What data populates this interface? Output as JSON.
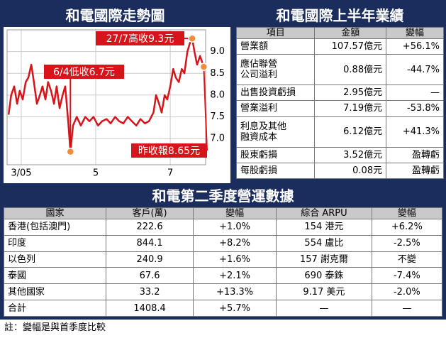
{
  "chart_data": {
    "type": "line",
    "title": "和電國際走勢圖",
    "x": [
      2.66,
      2.73,
      2.81,
      2.89,
      2.96,
      3.04,
      3.12,
      3.19,
      3.27,
      3.34,
      3.42,
      3.5,
      3.57,
      3.65,
      3.72,
      3.8,
      3.88,
      3.95,
      4.03,
      4.11,
      4.18,
      4.26,
      4.32,
      4.39,
      4.49,
      4.6,
      4.72,
      4.83,
      4.94,
      5.06,
      5.17,
      5.29,
      5.4,
      5.52,
      5.63,
      5.74,
      5.86,
      5.97,
      6.09,
      6.2,
      6.32,
      6.43,
      6.55,
      6.62,
      6.7,
      6.77,
      6.85,
      6.92,
      7.0,
      7.08,
      7.15,
      7.23,
      7.31,
      7.38,
      7.46,
      7.53,
      7.59,
      7.65,
      7.72,
      7.8,
      7.9
    ],
    "series": [
      {
        "color": "#d7141a",
        "values": [
          7.55,
          8.0,
          8.2,
          7.8,
          8.1,
          7.9,
          8.3,
          8.4,
          8.7,
          8.3,
          7.8,
          8.0,
          8.2,
          7.9,
          8.3,
          8.1,
          7.8,
          8.2,
          7.7,
          8.0,
          8.2,
          7.4,
          6.7,
          7.3,
          7.5,
          7.3,
          7.5,
          7.4,
          7.5,
          7.3,
          7.4,
          7.45,
          7.35,
          7.5,
          7.4,
          7.35,
          7.5,
          7.4,
          7.3,
          7.45,
          7.35,
          7.4,
          7.6,
          8.0,
          7.8,
          7.6,
          8.0,
          7.9,
          8.2,
          8.6,
          8.4,
          8.3,
          8.6,
          8.5,
          9.0,
          9.2,
          9.3,
          9.0,
          8.7,
          8.9,
          8.65
        ]
      }
    ],
    "xlim": [
      2.62,
      7.95
    ],
    "xticks": [
      {
        "value": 3,
        "label": "3/05"
      },
      5,
      7
    ],
    "ylim": [
      6.4,
      9.5
    ],
    "yticks": [
      {
        "value": 7,
        "label": "7.0"
      },
      7.5,
      {
        "value": 8,
        "label": "8.0"
      },
      8.5,
      {
        "value": 9,
        "label": "9.0"
      }
    ],
    "grid": true,
    "marker_color": "#f08c3c",
    "annotations": [
      {
        "text": "27/7高收9.3元",
        "point": 56
      },
      {
        "text": "6/4低收6.7元",
        "point": 22
      },
      {
        "text": "昨收報8.65元",
        "point": 60
      }
    ]
  },
  "results": {
    "title": "和電國際上半年業績",
    "header": [
      "項目",
      "金額",
      "變幅"
    ],
    "rows": [
      [
        "營業額",
        "107.57億元",
        "+56.1%"
      ],
      [
        "應佔聯營\n公司溢利",
        "0.88億元",
        "-44.7%"
      ],
      [
        "出售投資虧損",
        "2.95億元",
        "—"
      ],
      [
        "營業溢利",
        "7.19億元",
        "-53.8%"
      ],
      [
        "利息及其他\n融資成本",
        "6.12億元",
        "+41.3%"
      ],
      [
        "股東虧損",
        "3.52億元",
        "盈轉虧"
      ],
      [
        "每股虧損",
        "0.08元",
        "盈轉虧"
      ]
    ]
  },
  "operations": {
    "title": "和電第二季度營運數據",
    "header": [
      "國家",
      "客戶(萬)",
      "變幅",
      "綜合 ARPU",
      "變幅"
    ],
    "rows": [
      [
        "香港(包括澳門)",
        "222.6",
        "+1.0%",
        "154 港元",
        "+6.2%"
      ],
      [
        "印度",
        "844.1",
        "+8.2%",
        "554 盧比",
        "-2.5%"
      ],
      [
        "以色列",
        "240.9",
        "+1.6%",
        "157 謝克爾",
        "不變"
      ],
      [
        "泰國",
        "67.6",
        "+2.1%",
        "690 泰銖",
        "-7.4%"
      ],
      [
        "其他國家",
        "33.2",
        "+13.3%",
        "9.17 美元",
        "-2.0%"
      ],
      [
        "合計",
        "1408.4",
        "+5.7%",
        "—",
        "—"
      ]
    ],
    "note": "註：變幅是與首季度比較"
  }
}
